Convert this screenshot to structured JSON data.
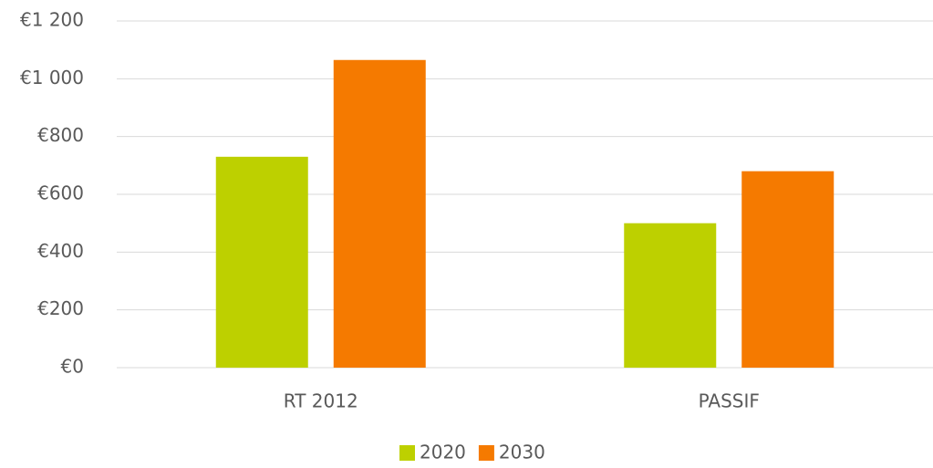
{
  "chart_data": {
    "type": "bar",
    "categories": [
      "RT 2012",
      "PASSIF"
    ],
    "series": [
      {
        "name": "2020",
        "color": "#bdd000",
        "values": [
          730,
          500
        ]
      },
      {
        "name": "2030",
        "color": "#f57a00",
        "values": [
          1065,
          680
        ]
      }
    ],
    "ylim": [
      0,
      1200
    ],
    "yticks": [
      {
        "value": 0,
        "label": "€0"
      },
      {
        "value": 200,
        "label": "€200"
      },
      {
        "value": 400,
        "label": "€400"
      },
      {
        "value": 600,
        "label": "€600"
      },
      {
        "value": 800,
        "label": "€800"
      },
      {
        "value": 1000,
        "label": "€1 000"
      },
      {
        "value": 1200,
        "label": "€1 200"
      }
    ],
    "grid": true,
    "legend": "bottom"
  }
}
